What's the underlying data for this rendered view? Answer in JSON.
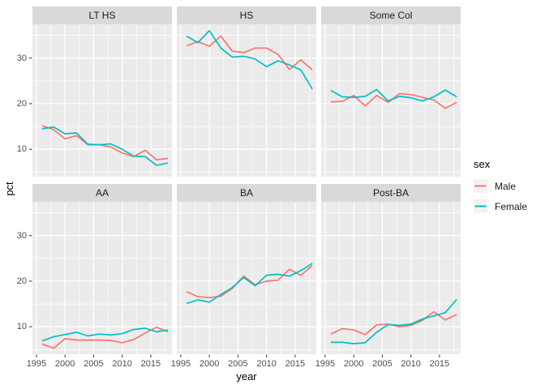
{
  "chart_data": {
    "type": "line",
    "facet_layout": {
      "rows": 2,
      "cols": 3
    },
    "xlabel": "year",
    "ylabel": "pct",
    "x": [
      1996,
      1998,
      2000,
      2002,
      2004,
      2006,
      2008,
      2010,
      2012,
      2014,
      2016,
      2018
    ],
    "x_ticks": [
      1995,
      2000,
      2005,
      2010,
      2015
    ],
    "x_minor": [
      1997.5,
      2002.5,
      2007.5,
      2012.5,
      2017.5
    ],
    "y_ticks": [
      10,
      20,
      30
    ],
    "y_minor": [
      5,
      15,
      25,
      35
    ],
    "xlim": [
      1994.3,
      2018.7
    ],
    "ylim": [
      4.0,
      37.4
    ],
    "grid": true,
    "facets": [
      {
        "label": "LT HS",
        "series": [
          {
            "name": "Male",
            "values": [
              15.2,
              14.3,
              12.3,
              13.0,
              11.0,
              11.0,
              10.5,
              9.2,
              8.4,
              9.8,
              7.7,
              8.0
            ]
          },
          {
            "name": "Female",
            "values": [
              14.5,
              14.9,
              13.4,
              13.6,
              11.1,
              11.0,
              11.2,
              10.0,
              8.5,
              8.4,
              6.5,
              7.0
            ]
          }
        ]
      },
      {
        "label": "HS",
        "series": [
          {
            "name": "Male",
            "values": [
              32.7,
              33.6,
              32.6,
              34.8,
              31.5,
              31.2,
              32.2,
              32.2,
              30.8,
              27.5,
              29.6,
              27.4
            ]
          },
          {
            "name": "Female",
            "values": [
              34.8,
              33.4,
              36.0,
              32.2,
              30.2,
              30.4,
              29.8,
              28.1,
              29.4,
              28.5,
              27.4,
              23.2
            ]
          }
        ]
      },
      {
        "label": "Some Col",
        "series": [
          {
            "name": "Male",
            "values": [
              20.4,
              20.5,
              21.8,
              19.5,
              21.8,
              20.3,
              22.2,
              22.0,
              21.4,
              20.8,
              19.0,
              20.3
            ]
          },
          {
            "name": "Female",
            "values": [
              22.9,
              21.5,
              21.4,
              21.6,
              23.1,
              20.6,
              21.6,
              21.3,
              20.6,
              21.5,
              23.0,
              21.5
            ]
          }
        ]
      },
      {
        "label": "AA",
        "series": [
          {
            "name": "Male",
            "values": [
              6.2,
              5.3,
              7.4,
              7.1,
              7.1,
              7.1,
              7.0,
              6.5,
              7.2,
              8.6,
              9.9,
              8.9
            ]
          },
          {
            "name": "Female",
            "values": [
              6.9,
              7.8,
              8.3,
              8.8,
              8.0,
              8.4,
              8.2,
              8.5,
              9.4,
              9.7,
              8.9,
              9.3
            ]
          }
        ]
      },
      {
        "label": "BA",
        "series": [
          {
            "name": "Male",
            "values": [
              17.7,
              16.6,
              16.4,
              16.7,
              18.4,
              21.1,
              19.2,
              20.0,
              20.2,
              22.6,
              21.3,
              23.4
            ]
          },
          {
            "name": "Female",
            "values": [
              15.1,
              15.9,
              15.4,
              17.1,
              18.6,
              20.8,
              19.0,
              21.3,
              21.5,
              21.1,
              22.3,
              23.9
            ]
          }
        ]
      },
      {
        "label": "Post-BA",
        "series": [
          {
            "name": "Male",
            "values": [
              8.4,
              9.6,
              9.3,
              8.3,
              10.4,
              10.6,
              10.0,
              10.3,
              11.4,
              13.3,
              11.5,
              12.7
            ]
          },
          {
            "name": "Female",
            "values": [
              6.6,
              6.6,
              6.3,
              6.5,
              8.8,
              10.5,
              10.3,
              10.6,
              11.7,
              12.4,
              13.1,
              16.0
            ]
          }
        ]
      }
    ],
    "legend": {
      "title": "sex",
      "position": "right",
      "entries": [
        {
          "label": "Male",
          "color": "#F8766D"
        },
        {
          "label": "Female",
          "color": "#00BFC4"
        }
      ]
    },
    "style": {
      "panel_bg": "#EBEBEB",
      "strip_bg": "#D9D9D9",
      "grid_color": "#FFFFFF",
      "tick_color": "#333333",
      "legend_key_bg": "#F2F2F2"
    }
  }
}
